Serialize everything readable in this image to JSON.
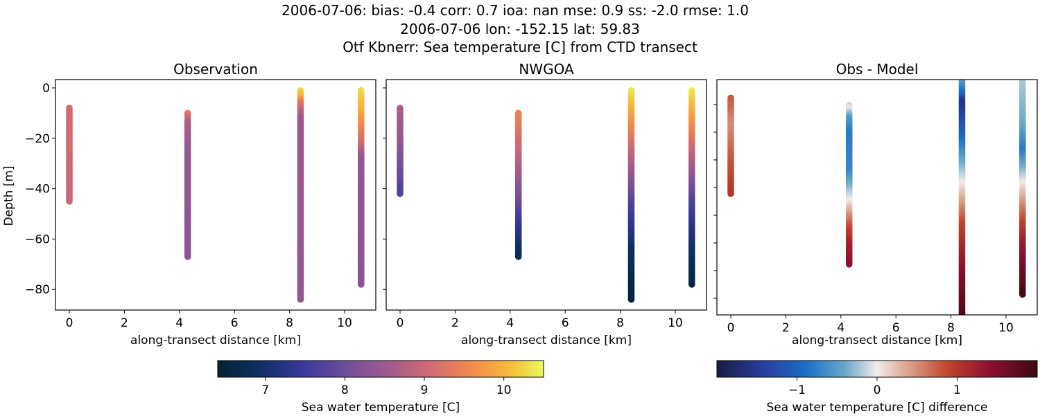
{
  "figure": {
    "title_lines": [
      "2006-07-06: bias: -0.4  corr: 0.7  ioa: nan  mse: 0.9  ss: -2.0  rmse: 1.0",
      "2006-07-06 lon: -152.15 lat: 59.83",
      "Otf Kbnerr: Sea temperature [C] from CTD transect"
    ]
  },
  "chart_data": [
    {
      "type": "scatter",
      "title": "Observation",
      "xlabel": "along-transect distance [km]",
      "ylabel": "Depth [m]",
      "xlim": [
        -0.5,
        11.1
      ],
      "ylim": [
        -88,
        3.3
      ],
      "xticks": [
        "0",
        "2",
        "4",
        "6",
        "8",
        "10"
      ],
      "yticks": [
        "0",
        "−20",
        "−40",
        "−60",
        "−80"
      ],
      "colormap": "thermal",
      "profiles": [
        {
          "x": 0,
          "depth_top": -8,
          "depth_bottom": -45,
          "stops": [
            [
              -8,
              9.1
            ],
            [
              -45,
              9.0
            ]
          ]
        },
        {
          "x": 4.3,
          "depth_top": -10,
          "depth_bottom": -67,
          "stops": [
            [
              -10,
              9.4
            ],
            [
              -14,
              8.7
            ],
            [
              -25,
              8.4
            ],
            [
              -67,
              8.3
            ]
          ]
        },
        {
          "x": 8.4,
          "depth_top": -1,
          "depth_bottom": -84,
          "stops": [
            [
              -1,
              10.3
            ],
            [
              -4,
              9.9
            ],
            [
              -6,
              9.3
            ],
            [
              -12,
              8.5
            ],
            [
              -84,
              8.4
            ]
          ]
        },
        {
          "x": 10.6,
          "depth_top": -1,
          "depth_bottom": -78,
          "stops": [
            [
              -1,
              10.3
            ],
            [
              -8,
              10.0
            ],
            [
              -15,
              9.6
            ],
            [
              -22,
              9.1
            ],
            [
              -28,
              8.4
            ],
            [
              -78,
              8.3
            ]
          ]
        }
      ]
    },
    {
      "type": "scatter",
      "title": "NWGOA",
      "xlabel": "along-transect distance [km]",
      "xlim": [
        -0.5,
        11.1
      ],
      "ylim": [
        -88,
        3.3
      ],
      "xticks": [
        "0",
        "2",
        "4",
        "6",
        "8",
        "10"
      ],
      "colormap": "thermal",
      "profiles": [
        {
          "x": 0,
          "depth_top": -8,
          "depth_bottom": -42,
          "stops": [
            [
              -8,
              8.7
            ],
            [
              -25,
              8.3
            ],
            [
              -42,
              7.7
            ]
          ]
        },
        {
          "x": 4.3,
          "depth_top": -10,
          "depth_bottom": -67,
          "stops": [
            [
              -10,
              9.5
            ],
            [
              -25,
              9.0
            ],
            [
              -42,
              8.2
            ],
            [
              -55,
              7.4
            ],
            [
              -67,
              6.8
            ]
          ]
        },
        {
          "x": 8.4,
          "depth_top": -1,
          "depth_bottom": -84,
          "stops": [
            [
              -1,
              10.4
            ],
            [
              -10,
              9.9
            ],
            [
              -25,
              9.0
            ],
            [
              -45,
              7.8
            ],
            [
              -65,
              6.9
            ],
            [
              -84,
              6.5
            ]
          ]
        },
        {
          "x": 10.6,
          "depth_top": -1,
          "depth_bottom": -78,
          "stops": [
            [
              -1,
              10.4
            ],
            [
              -10,
              9.9
            ],
            [
              -25,
              9.0
            ],
            [
              -45,
              7.7
            ],
            [
              -62,
              7.0
            ],
            [
              -78,
              6.6
            ]
          ]
        }
      ]
    },
    {
      "type": "scatter",
      "title": "Obs - Model",
      "xlabel": "along-transect distance [km]",
      "xlim": [
        -0.5,
        11.1
      ],
      "ylim": [
        -88,
        3.3
      ],
      "xticks": [
        "0",
        "2",
        "4",
        "6",
        "8",
        "10"
      ],
      "colormap": "balance",
      "profiles": [
        {
          "x": 0,
          "depth_top": -4,
          "depth_bottom": -42,
          "stops": [
            [
              -4,
              0.8
            ],
            [
              -15,
              0.5
            ],
            [
              -30,
              0.8
            ],
            [
              -42,
              1.0
            ]
          ]
        },
        {
          "x": 4.3,
          "depth_top": -7,
          "depth_bottom": -70,
          "stops": [
            [
              -7,
              0.2
            ],
            [
              -12,
              -0.5
            ],
            [
              -18,
              -0.8
            ],
            [
              -33,
              -0.7
            ],
            [
              -45,
              0.0
            ],
            [
              -55,
              0.8
            ],
            [
              -62,
              1.2
            ],
            [
              -70,
              1.4
            ]
          ]
        },
        {
          "x": 8.4,
          "depth_top": 3,
          "depth_bottom": -92,
          "stops": [
            [
              3,
              -0.4
            ],
            [
              -3,
              -1.0
            ],
            [
              -6,
              -1.6
            ],
            [
              -15,
              -1.2
            ],
            [
              -28,
              -0.5
            ],
            [
              -38,
              0.0
            ],
            [
              -55,
              0.9
            ],
            [
              -68,
              1.3
            ],
            [
              -92,
              1.9
            ]
          ]
        },
        {
          "x": 10.6,
          "depth_top": 3,
          "depth_bottom": -82,
          "stops": [
            [
              3,
              -0.2
            ],
            [
              -15,
              -0.4
            ],
            [
              -25,
              -0.8
            ],
            [
              -38,
              0.0
            ],
            [
              -50,
              0.7
            ],
            [
              -60,
              1.2
            ],
            [
              -82,
              1.9
            ]
          ]
        }
      ]
    }
  ],
  "colorbars": [
    {
      "label": "Sea water temperature [C]",
      "colormap": "thermal",
      "range": [
        6.4,
        10.5
      ],
      "ticks": [
        "7",
        "8",
        "9",
        "10"
      ],
      "tick_values": [
        7,
        8,
        9,
        10
      ]
    },
    {
      "label": "Sea water temperature [C] difference",
      "colormap": "balance",
      "range": [
        -2.0,
        2.0
      ],
      "ticks": [
        "−1",
        "0",
        "1"
      ],
      "tick_values": [
        -1,
        0,
        1
      ]
    }
  ]
}
